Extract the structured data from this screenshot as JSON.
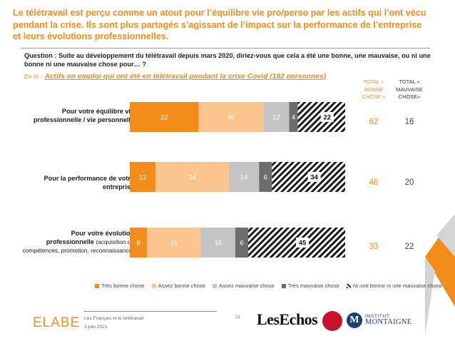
{
  "title": "Le télétravail est perçu comme un atout pour l’équilibre vie pro/perso par les actifs qui l’ont vécu pendant la crise. Ils sont plus partagés s’agissant de l’impact sur la performance de l’entreprise et leurs évolutions professionnelles.",
  "question": "Question : Suite au développement du télétravail depuis mars 2020, diriez-vous que cela a été une bonne, une mauvaise, ou ni une bonne ni une mauvaise chose pour… ?",
  "base_prefix": "En % -",
  "base_label": "Actifs en emploi qui ont été en télétravail pendant la crise Covid (192 personnes)",
  "total_headers": [
    "TOTAL « BONNE CHOSE »",
    "TOTAL « MAUVAISE CHOSE»"
  ],
  "row_labels": [
    {
      "main": "Pour votre équilibre vie professionnelle / vie personnelle",
      "sub": ""
    },
    {
      "main": "Pour la performance de votre entreprise",
      "sub": ""
    },
    {
      "main": "Pour votre évolution professionnelle",
      "sub": "(acquisition de compétences, promotion, reconnaissance)"
    }
  ],
  "colors": {
    "tres_bonne": "#f28c1a",
    "assez_bonne": "#f9c48e",
    "assez_mauvaise": "#c4c4c4",
    "tres_mauvaise": "#6d6d6d",
    "ni_ni": "#1a1a1a",
    "title": "#f28c1a"
  },
  "chart_data": {
    "type": "bar",
    "orientation": "horizontal",
    "stacked": true,
    "categories": [
      "Pour votre équilibre vie professionnelle / vie personnelle",
      "Pour la performance de votre entreprise",
      "Pour votre évolution professionnelle (acquisition de compétences, promotion, reconnaissance)"
    ],
    "series": [
      {
        "name": "Très bonne chose",
        "values": [
          32,
          12,
          8
        ]
      },
      {
        "name": "Assez bonne chose",
        "values": [
          30,
          34,
          25
        ]
      },
      {
        "name": "Assez mauvaise chose",
        "values": [
          12,
          14,
          16
        ]
      },
      {
        "name": "Très mauvaise chose",
        "values": [
          4,
          6,
          6
        ]
      },
      {
        "name": "Ni une bonne ni une mauvaise chose",
        "values": [
          22,
          34,
          45
        ]
      }
    ],
    "totals": {
      "bonne_chose": [
        62,
        46,
        33
      ],
      "mauvaise_chose": [
        16,
        20,
        22
      ]
    },
    "unit": "%",
    "xlim": [
      0,
      100
    ],
    "legend_position": "bottom"
  },
  "legend_labels": [
    "Très bonne chose",
    "Assez bonne chose",
    "Assez mauvaise chose",
    "Très mauvaise chose",
    "Ni une bonne ni une mauvaise chose"
  ],
  "footer": {
    "brand": "ELABE",
    "report": "Les Français et le télétravail",
    "date": "3 juin 2021",
    "page": "11",
    "lesechos": "LesEchos",
    "institut_top": "INSTITUT",
    "institut_bottom": "MONTAIGNE"
  }
}
